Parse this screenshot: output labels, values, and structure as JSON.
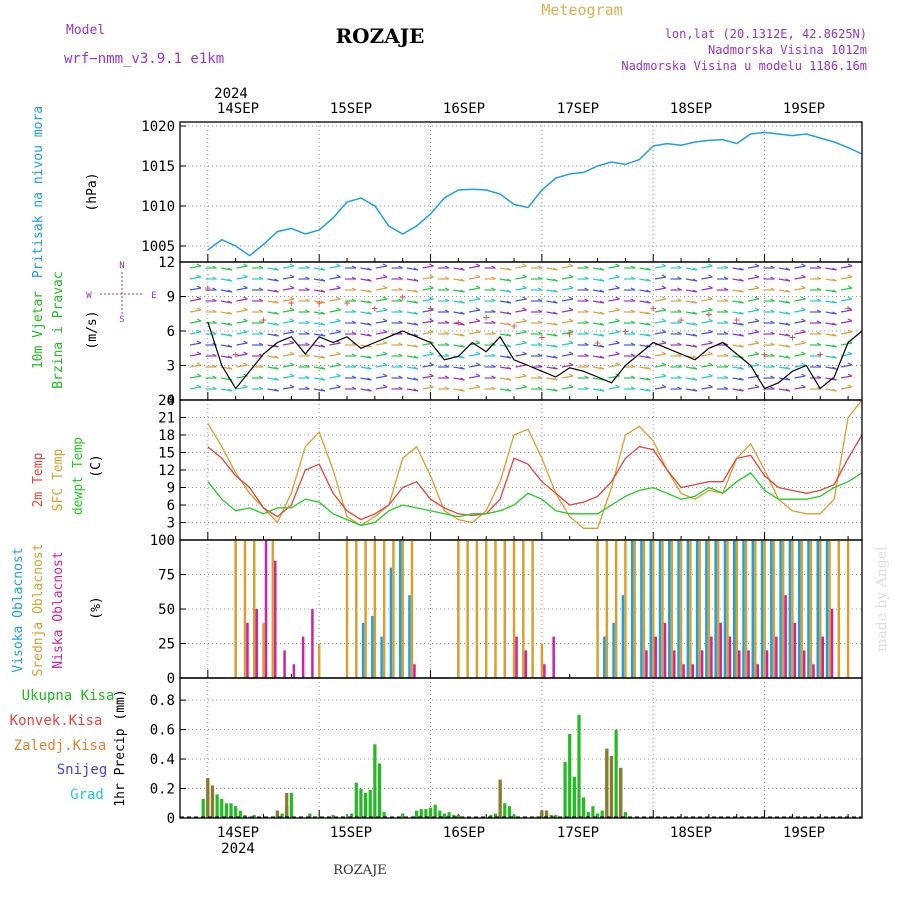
{
  "header": {
    "model_label": "Model",
    "model_name": "wrf−nmm_v3.9.1 e1km",
    "location_title": "ROZAJE",
    "meteogram_label": "Meteogram",
    "coords": "lon,lat (20.1312E, 42.8625N)",
    "elevation": "Nadmorska Visina 1012m",
    "model_elevation": "Nadmorska Visina u modelu 1186.16m"
  },
  "footer": {
    "location": "ROZAJE",
    "credit": "made by Angel"
  },
  "colors": {
    "pressure": "#1ea0e0",
    "wind_axis": "#22bb22",
    "compass": "#9933cc",
    "t2m": "#e8443c",
    "sfc": "#d8a030",
    "dewpt": "#22cc22",
    "high_cloud": "#1ea0e0",
    "mid_cloud": "#d8a030",
    "low_cloud": "#cc22aa",
    "precip_total": "#22bb22",
    "precip_conv": "#e8443c",
    "precip_frozen": "#e88030",
    "snow": "#4444dd",
    "grad": "#22cccc",
    "purple_text": "#9933cc",
    "orange_text": "#e0b050"
  },
  "time_axis": {
    "year": "2024",
    "days": [
      "14SEP",
      "15SEP",
      "16SEP",
      "17SEP",
      "18SEP",
      "19SEP"
    ]
  },
  "panels": {
    "pressure": {
      "ylabel": "Pritisak na nivou mora",
      "unit": "(hPa)",
      "ticks": [
        "1005",
        "1010",
        "1015",
        "1020"
      ]
    },
    "wind": {
      "ylabel1": "10m Vjetar",
      "ylabel2": "Brzina i Pravac",
      "unit": "(m/s)",
      "ticks": [
        "0",
        "3",
        "6",
        "9",
        "12"
      ],
      "compass": {
        "north": "N",
        "south": "S",
        "west": "W",
        "east": "E"
      }
    },
    "temperature": {
      "label_t2m": "2m Temp",
      "label_sfc": "SFC Temp",
      "label_dew": "dewpt Temp",
      "unit": "(C)",
      "ticks": [
        "3",
        "6",
        "9",
        "12",
        "15",
        "18",
        "21",
        "24"
      ]
    },
    "clouds": {
      "label_high": "Visoka Oblacnost",
      "label_mid": "Srednja Oblacnost",
      "label_low": "Niska Oblacnost",
      "unit": "(%)",
      "ticks": [
        "0",
        "25",
        "50",
        "75",
        "100"
      ]
    },
    "precip": {
      "ylabel": "1hr Precip (mm)",
      "ticks": [
        "0",
        "0.2",
        "0.4",
        "0.6",
        "0.8"
      ],
      "legend": [
        "Ukupna Kisa",
        "Konvek.Kisa",
        "Zaledj.Kisa",
        "Snijeg",
        "Grad"
      ]
    }
  },
  "chart_data": [
    {
      "type": "line",
      "x": [
        0,
        3,
        6,
        9,
        12,
        15,
        18,
        21,
        24,
        27,
        30,
        33,
        36,
        39,
        42,
        45,
        48,
        51,
        54,
        57,
        60,
        63,
        66,
        69,
        72,
        75,
        78,
        81,
        84,
        87,
        90,
        93,
        96,
        99,
        102,
        105,
        108,
        111,
        114,
        117,
        120,
        123,
        126,
        129,
        132,
        135,
        138,
        141
      ],
      "series": [
        {
          "values": [
            1004.5,
            1005.8,
            1005,
            1003.8,
            1005.2,
            1006.8,
            1007.2,
            1006.5,
            1007,
            1008.5,
            1010.5,
            1011,
            1010,
            1007.5,
            1006.5,
            1007.5,
            1009,
            1011,
            1012,
            1012.1,
            1012,
            1011.5,
            1010.2,
            1009.8,
            1012,
            1013.5,
            1014,
            1014.2,
            1015,
            1015.5,
            1015.2,
            1015.8,
            1017.5,
            1017.8,
            1017.6,
            1018,
            1018.2,
            1018.3,
            1017.8,
            1019,
            1019.2,
            1019,
            1018.8,
            1019,
            1018.5,
            1018,
            1017.3,
            1016.5
          ]
        }
      ],
      "xlabel": "",
      "ylabel": "Pritisak na nivou mora",
      "xlim": [
        -6,
        141
      ],
      "ylim": [
        1003,
        1020.5
      ]
    },
    {
      "type": "line",
      "x": [
        0,
        3,
        6,
        9,
        12,
        15,
        18,
        21,
        24,
        27,
        30,
        33,
        36,
        39,
        42,
        45,
        48,
        51,
        54,
        57,
        60,
        63,
        66,
        69,
        72,
        75,
        78,
        81,
        84,
        87,
        90,
        93,
        96,
        99,
        102,
        105,
        108,
        111,
        114,
        117,
        120,
        123,
        126,
        129,
        132,
        135,
        138,
        141
      ],
      "series": [
        {
          "values": [
            6.8,
            3,
            1,
            2.5,
            4,
            5,
            5.5,
            4,
            5.5,
            5,
            5.5,
            4.5,
            5,
            5.5,
            6,
            5.5,
            5,
            3.5,
            3.8,
            5,
            4.2,
            5.5,
            3.5,
            3,
            2.5,
            2,
            2.8,
            2.5,
            2,
            1.5,
            3,
            4,
            5,
            4.5,
            4,
            3.5,
            4.5,
            5,
            4,
            3,
            1,
            1.5,
            2.5,
            3,
            1,
            2,
            5,
            6
          ]
        }
      ],
      "xlabel": "",
      "ylabel": "10m Vjetar Brzina i Pravac",
      "xlim": [
        -6,
        141
      ],
      "ylim": [
        0,
        12
      ]
    },
    {
      "type": "line",
      "x": [
        0,
        3,
        6,
        9,
        12,
        15,
        18,
        21,
        24,
        27,
        30,
        33,
        36,
        39,
        42,
        45,
        48,
        51,
        54,
        57,
        60,
        63,
        66,
        69,
        72,
        75,
        78,
        81,
        84,
        87,
        90,
        93,
        96,
        99,
        102,
        105,
        108,
        111,
        114,
        117,
        120,
        123,
        126,
        129,
        132,
        135,
        138,
        141
      ],
      "series": [
        {
          "name": "2m Temp",
          "values": [
            16,
            14,
            11,
            9,
            5.5,
            4,
            6,
            12,
            13,
            8,
            5,
            3.5,
            4.5,
            6,
            9,
            10,
            7,
            5.5,
            4.5,
            4.2,
            4.5,
            7,
            14,
            13,
            10,
            8,
            6,
            6.5,
            7.5,
            10,
            14,
            16,
            15.5,
            12,
            9,
            9.5,
            10,
            10,
            14,
            14.5,
            11,
            9,
            8.5,
            8,
            8.5,
            9.5,
            14,
            18
          ]
        },
        {
          "name": "SFC Temp",
          "values": [
            20,
            16,
            11.5,
            8,
            5.5,
            3,
            8,
            16,
            18.5,
            12,
            4,
            2.5,
            4,
            6,
            14,
            16,
            11,
            5,
            3.5,
            3,
            5,
            10,
            18,
            19,
            14,
            8,
            4,
            2,
            2,
            9,
            18,
            19.5,
            17,
            12,
            8,
            7,
            8.5,
            8,
            14,
            16.5,
            12,
            7,
            5,
            4.5,
            4.5,
            7,
            21,
            24
          ]
        },
        {
          "name": "dewpt Temp",
          "values": [
            10,
            7,
            5,
            5.5,
            4.5,
            5.5,
            5.5,
            7,
            6.5,
            4.5,
            3.5,
            2.5,
            3,
            5,
            6,
            5.5,
            5,
            4.5,
            4,
            4.5,
            4.5,
            5,
            6,
            8,
            7,
            5,
            4.5,
            4.5,
            4.5,
            6,
            7.5,
            8.5,
            9,
            8,
            7,
            7.5,
            9,
            8,
            10,
            11.5,
            8.5,
            7,
            7,
            7,
            7.5,
            9,
            10,
            11.5
          ]
        }
      ],
      "xlabel": "",
      "ylabel": "(C)",
      "xlim": [
        -6,
        141
      ],
      "ylim": [
        0,
        24
      ]
    },
    {
      "type": "bar",
      "x": [
        0,
        6,
        8,
        10,
        12,
        14,
        16,
        18,
        20,
        22,
        24,
        26,
        30,
        32,
        34,
        36,
        38,
        40,
        42,
        44,
        46,
        48,
        50,
        54,
        56,
        58,
        60,
        62,
        64,
        66,
        68,
        70,
        72,
        74,
        76,
        78,
        84,
        86,
        88,
        90,
        92,
        94,
        96,
        98,
        100,
        102,
        104,
        106,
        108,
        110,
        112,
        114,
        116,
        118,
        120,
        122,
        124,
        126,
        128,
        130,
        132,
        134,
        136,
        138
      ],
      "series": [
        {
          "name": "Visoka Oblacnost",
          "values": [
            0,
            0,
            0,
            0,
            0,
            0,
            0,
            0,
            0,
            0,
            0,
            0,
            0,
            0,
            40,
            45,
            30,
            80,
            100,
            60,
            0,
            0,
            0,
            0,
            0,
            0,
            0,
            0,
            0,
            0,
            0,
            0,
            0,
            0,
            0,
            0,
            0,
            30,
            40,
            60,
            100,
            100,
            100,
            100,
            100,
            100,
            100,
            100,
            100,
            100,
            100,
            100,
            100,
            100,
            100,
            100,
            100,
            100,
            100,
            100,
            100,
            100,
            0,
            0
          ]
        },
        {
          "name": "Srednja Oblacnost",
          "values": [
            0,
            100,
            100,
            100,
            40,
            100,
            0,
            0,
            0,
            0,
            25,
            0,
            100,
            100,
            100,
            100,
            100,
            100,
            100,
            100,
            0,
            0,
            0,
            100,
            100,
            100,
            100,
            100,
            100,
            100,
            100,
            100,
            25,
            0,
            0,
            0,
            100,
            100,
            100,
            100,
            100,
            100,
            100,
            100,
            100,
            100,
            100,
            100,
            100,
            100,
            100,
            100,
            100,
            100,
            100,
            100,
            100,
            100,
            100,
            100,
            100,
            100,
            100,
            100
          ]
        },
        {
          "name": "Niska Oblacnost",
          "values": [
            0,
            0,
            40,
            50,
            100,
            85,
            20,
            10,
            30,
            50,
            0,
            0,
            0,
            0,
            0,
            0,
            0,
            0,
            0,
            10,
            0,
            0,
            0,
            0,
            0,
            0,
            0,
            0,
            0,
            30,
            20,
            0,
            10,
            30,
            0,
            0,
            0,
            0,
            0,
            0,
            0,
            20,
            30,
            40,
            20,
            10,
            10,
            20,
            30,
            40,
            30,
            20,
            20,
            10,
            20,
            30,
            60,
            40,
            20,
            10,
            30,
            50,
            0,
            0
          ]
        }
      ],
      "xlabel": "",
      "ylabel": "(%)",
      "xlim": [
        -6,
        141
      ],
      "ylim": [
        0,
        100
      ]
    },
    {
      "type": "bar",
      "x": [
        -1,
        0,
        1,
        2,
        3,
        4,
        5,
        6,
        7,
        8,
        9,
        10,
        15,
        16,
        17,
        18,
        22,
        27,
        31,
        32,
        33,
        34,
        35,
        36,
        37,
        38,
        42,
        45,
        46,
        47,
        48,
        49,
        50,
        51,
        52,
        53,
        54,
        55,
        61,
        62,
        63,
        64,
        65,
        66,
        70,
        71,
        72,
        73,
        74,
        75,
        76,
        77,
        78,
        79,
        80,
        81,
        82,
        83,
        84,
        85,
        86,
        87,
        88,
        89,
        90
      ],
      "series": [
        {
          "name": "Ukupna Kisa",
          "values": [
            0.13,
            0.27,
            0.22,
            0.16,
            0.13,
            0.1,
            0.1,
            0.08,
            0.05,
            0.02,
            0.01,
            0.02,
            0.05,
            0.03,
            0.08,
            0.17,
            0.03,
            0.02,
            0.03,
            0.24,
            0.2,
            0.17,
            0.19,
            0.5,
            0.37,
            0.04,
            0.03,
            0.05,
            0.06,
            0.06,
            0.07,
            0.09,
            0.05,
            0.03,
            0.04,
            0.02,
            0.02,
            0.01,
            0.02,
            0.03,
            0.26,
            0.1,
            0.08,
            0.02,
            0.01,
            0.01,
            0.05,
            0.05,
            0.02,
            0.02,
            0.01,
            0.38,
            0.57,
            0.28,
            0.7,
            0.14,
            0.04,
            0.08,
            0.03,
            0.05,
            0.47,
            0.42,
            0.6,
            0.34,
            0.04
          ]
        },
        {
          "name": "Konvek.Kisa",
          "values": [
            0,
            0.27,
            0.22,
            0,
            0,
            0,
            0,
            0,
            0,
            0,
            0,
            0,
            0.05,
            0,
            0.17,
            0,
            0,
            0,
            0,
            0,
            0,
            0,
            0,
            0,
            0,
            0,
            0,
            0,
            0,
            0,
            0,
            0,
            0,
            0,
            0,
            0,
            0,
            0,
            0,
            0,
            0.26,
            0,
            0,
            0,
            0,
            0,
            0.05,
            0.05,
            0,
            0,
            0,
            0,
            0,
            0,
            0,
            0,
            0,
            0,
            0,
            0,
            0.47,
            0.42,
            0,
            0.34,
            0
          ]
        }
      ],
      "xlabel": "",
      "ylabel": "1hr Precip (mm)",
      "xlim": [
        -6,
        141
      ],
      "ylim": [
        0,
        0.95
      ]
    }
  ]
}
